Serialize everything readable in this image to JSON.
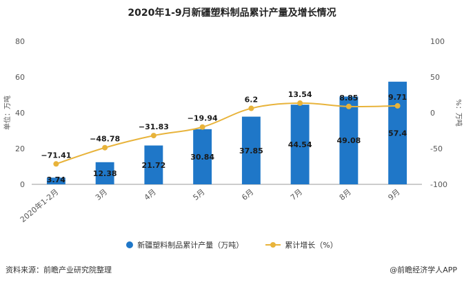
{
  "title": "2020年1-9月新疆塑料制品累计产量及增长情况",
  "footer": {
    "source": "资料来源：前瞻产业研究院整理",
    "brand": "@前瞻经济学人APP"
  },
  "colors": {
    "bar": "#1f77c8",
    "line": "#e8b33a",
    "axis": "#999999",
    "text": "#555555"
  },
  "chart_data": {
    "type": "bar",
    "title": "2020年1-9月新疆塑料制品累计产量及增长情况",
    "categories": [
      "2020年1-2月",
      "3月",
      "4月",
      "5月",
      "6月",
      "7月",
      "8月",
      "9月"
    ],
    "ylabel": "单位：万吨",
    "y2label": "%：万吨",
    "ylim": [
      0,
      80
    ],
    "yticks": [
      0,
      20,
      40,
      60,
      80
    ],
    "y2lim": [
      -100,
      100
    ],
    "y2ticks": [
      -100,
      -50,
      0,
      50,
      100
    ],
    "series": [
      {
        "name": "新疆塑料制品累计产量（万吨）",
        "type": "bar",
        "axis": "left",
        "values": [
          3.74,
          12.38,
          21.72,
          30.84,
          37.85,
          44.54,
          49.08,
          57.4
        ],
        "labels": [
          "3.74",
          "12.38",
          "21.72",
          "30.84",
          "37.85",
          "44.54",
          "49.08",
          "57.4"
        ]
      },
      {
        "name": "累计增长（%）",
        "type": "line",
        "axis": "right",
        "values": [
          -71.41,
          -48.78,
          -31.83,
          -19.94,
          6.2,
          13.54,
          8.85,
          9.71
        ],
        "labels": [
          "−71.41",
          "−48.78",
          "−31.83",
          "−19.94",
          "6.2",
          "13.54",
          "8.85",
          "9.71"
        ]
      }
    ],
    "legend": "bottom",
    "grid": false
  }
}
